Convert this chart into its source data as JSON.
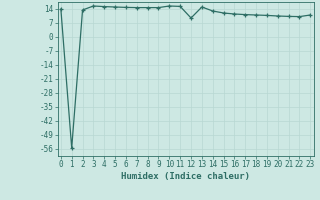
{
  "title": "",
  "xlabel": "Humidex (Indice chaleur)",
  "ylabel": "",
  "background_color": "#cde8e3",
  "line_color": "#2e6e65",
  "marker": "+",
  "x_values": [
    0,
    1,
    2,
    3,
    4,
    5,
    6,
    7,
    8,
    9,
    10,
    11,
    12,
    13,
    14,
    15,
    16,
    17,
    18,
    19,
    20,
    21,
    22,
    23
  ],
  "y_values": [
    14.0,
    -55.5,
    13.5,
    15.5,
    15.2,
    15.0,
    14.8,
    14.7,
    14.7,
    14.7,
    15.5,
    15.3,
    9.5,
    15.0,
    13.0,
    12.0,
    11.5,
    11.2,
    11.0,
    10.8,
    10.5,
    10.3,
    10.2,
    11.0
  ],
  "ylim": [
    -59.5,
    17.5
  ],
  "yticks": [
    14,
    7,
    0,
    -7,
    -14,
    -21,
    -28,
    -35,
    -42,
    -49,
    -56
  ],
  "xlim": [
    -0.3,
    23.3
  ],
  "xticks": [
    0,
    1,
    2,
    3,
    4,
    5,
    6,
    7,
    8,
    9,
    10,
    11,
    12,
    13,
    14,
    15,
    16,
    17,
    18,
    19,
    20,
    21,
    22,
    23
  ],
  "grid_color": "#b8d8d2",
  "font_color": "#2e6e65",
  "xlabel_fontsize": 6.5,
  "tick_fontsize": 5.5,
  "linewidth": 0.9,
  "markersize": 3.5,
  "markeredgewidth": 0.9
}
